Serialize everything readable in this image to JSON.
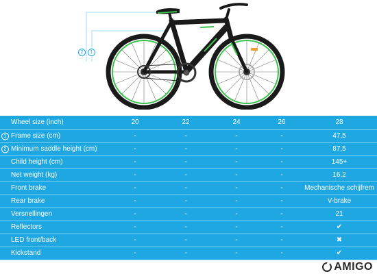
{
  "table": {
    "header": {
      "label": "Wheel size (inch)",
      "sizes": [
        "20",
        "22",
        "24",
        "26",
        "28"
      ]
    },
    "rows": [
      {
        "badge": "1",
        "label": "Frame size (cm)",
        "values": [
          "-",
          "-",
          "-",
          "-",
          "47,5"
        ]
      },
      {
        "badge": "2",
        "label": "Minimum saddle height (cm)",
        "values": [
          "-",
          "-",
          "-",
          "-",
          "87,5"
        ]
      },
      {
        "badge": "",
        "label": "Child height (cm)",
        "values": [
          "-",
          "-",
          "-",
          "-",
          "145+"
        ]
      },
      {
        "badge": "",
        "label": "Net weight (kg)",
        "values": [
          "-",
          "-",
          "-",
          "-",
          "16,2"
        ]
      },
      {
        "badge": "",
        "label": "Front brake",
        "values": [
          "-",
          "-",
          "-",
          "-",
          "Mechanische schijfrem"
        ]
      },
      {
        "badge": "",
        "label": "Rear brake",
        "values": [
          "-",
          "-",
          "-",
          "-",
          "V-brake"
        ]
      },
      {
        "badge": "",
        "label": "Versnellingen",
        "values": [
          "-",
          "-",
          "-",
          "-",
          "21"
        ]
      },
      {
        "badge": "",
        "label": "Reflectors",
        "values": [
          "-",
          "-",
          "-",
          "-",
          "✔"
        ]
      },
      {
        "badge": "",
        "label": "LED front/back",
        "values": [
          "-",
          "-",
          "-",
          "-",
          "✖"
        ]
      },
      {
        "badge": "",
        "label": "Kickstand",
        "values": [
          "-",
          "-",
          "-",
          "-",
          "✔"
        ]
      }
    ]
  },
  "dimension_markers": [
    "2",
    "1"
  ],
  "brand": {
    "name": "AMIGO"
  },
  "colors": {
    "table_bg": "#1ea7e0",
    "frame": "#1a1a1a",
    "accent": "#39c24a",
    "guide": "#9fdcf3"
  }
}
